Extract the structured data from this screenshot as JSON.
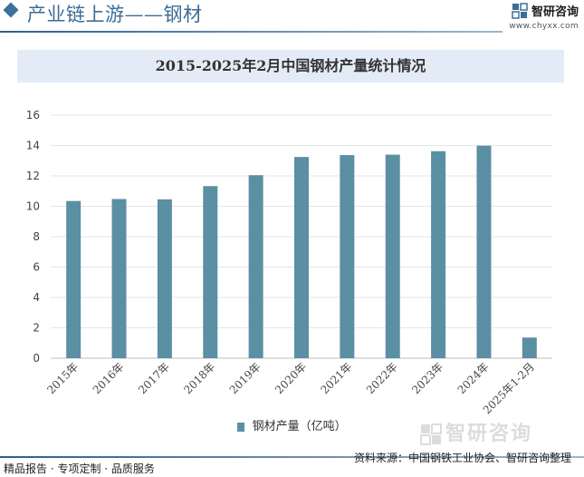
{
  "header": {
    "title": "产业链上游——钢材",
    "brand_name": "智研咨询",
    "brand_url": "www.chyxx.com"
  },
  "chart_data": {
    "type": "bar",
    "title": "2015-2025年2月中国钢材产量统计情况",
    "categories": [
      "2015年",
      "2016年",
      "2017年",
      "2018年",
      "2019年",
      "2020年",
      "2021年",
      "2022年",
      "2023年",
      "2024年",
      "2025年1-2月"
    ],
    "series": [
      {
        "name": "钢材产量（亿吨）",
        "values": [
          10.35,
          10.48,
          10.46,
          11.33,
          12.05,
          13.25,
          13.37,
          13.4,
          13.63,
          13.99,
          1.36
        ],
        "color": "#5b8fa3"
      }
    ],
    "xlabel": "",
    "ylabel": "",
    "ylim": [
      0,
      16
    ],
    "yticks": [
      0,
      2,
      4,
      6,
      8,
      10,
      12,
      14,
      16
    ],
    "grid": true,
    "legend_position": "bottom"
  },
  "footer": {
    "left_text": "精品报告 · 专项定制 · 品质服务",
    "source_text": "资料来源：中国钢铁工业协会、智研咨询整理",
    "watermark_text": "智研咨询"
  },
  "colors": {
    "accent": "#3b6d97",
    "bar": "#5b8fa3",
    "title_bg": "#e3ecf6"
  }
}
